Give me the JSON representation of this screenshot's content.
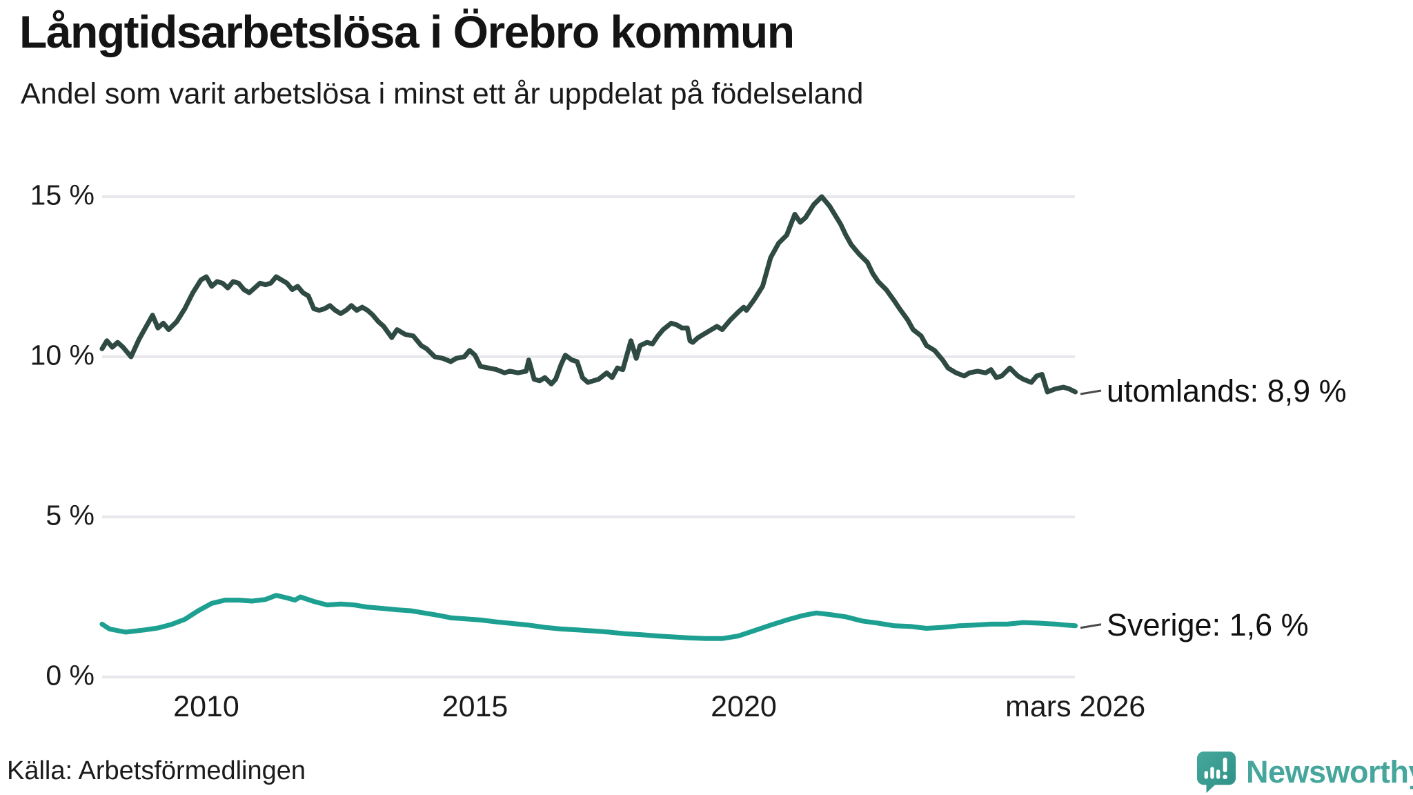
{
  "title": "Långtidsarbetslösa i Örebro kommun",
  "subtitle": "Andel som varit arbetslösa i minst ett år uppdelat på födelseland",
  "source": "Källa: Arbetsförmedlingen",
  "branding": {
    "name": "Newsworthy",
    "icon": "newsworthy-logo-icon",
    "color": "#3ba093"
  },
  "colors": {
    "foreign_line": "#2e4a43",
    "sweden_line": "#1da091",
    "gridline": "#e8e8ec",
    "connector": "#4a4a4a"
  },
  "chart_data": {
    "type": "line",
    "title": "Långtidsarbetslösa i Örebro kommun",
    "subtitle": "Andel som varit arbetslösa i minst ett år uppdelat på födelseland",
    "xlabel": "",
    "ylabel": "",
    "grid": true,
    "legend_position": "end-of-line-labels",
    "x_range": [
      2008.06,
      2026.17
    ],
    "ylim": [
      0,
      15.3
    ],
    "y_axis": {
      "ticks": [
        {
          "label": "15 %",
          "value": 15
        },
        {
          "label": "10 %",
          "value": 10
        },
        {
          "label": "5 %",
          "value": 5
        },
        {
          "label": "0 %",
          "value": 0
        }
      ]
    },
    "x_axis": {
      "ticks": [
        {
          "label": "2010",
          "year": 2010
        },
        {
          "label": "2015",
          "year": 2015
        },
        {
          "label": "2020",
          "year": 2020
        },
        {
          "label": "mars 2026",
          "year": 2026.17
        }
      ]
    },
    "series": [
      {
        "name": "utomlands",
        "label": "utomlands: 8,9 %",
        "last_value_text": "8,9 %",
        "color": "#2e4a43",
        "points": [
          [
            2008.06,
            10.25
          ],
          [
            2008.15,
            10.5
          ],
          [
            2008.25,
            10.3
          ],
          [
            2008.35,
            10.45
          ],
          [
            2008.45,
            10.3
          ],
          [
            2008.6,
            10.0
          ],
          [
            2008.75,
            10.55
          ],
          [
            2008.9,
            11.0
          ],
          [
            2009.0,
            11.3
          ],
          [
            2009.1,
            10.9
          ],
          [
            2009.2,
            11.05
          ],
          [
            2009.3,
            10.85
          ],
          [
            2009.45,
            11.1
          ],
          [
            2009.6,
            11.5
          ],
          [
            2009.75,
            12.0
          ],
          [
            2009.9,
            12.4
          ],
          [
            2010.0,
            12.5
          ],
          [
            2010.1,
            12.2
          ],
          [
            2010.2,
            12.35
          ],
          [
            2010.3,
            12.3
          ],
          [
            2010.4,
            12.15
          ],
          [
            2010.5,
            12.35
          ],
          [
            2010.6,
            12.3
          ],
          [
            2010.7,
            12.1
          ],
          [
            2010.8,
            12.0
          ],
          [
            2010.9,
            12.15
          ],
          [
            2011.0,
            12.3
          ],
          [
            2011.1,
            12.25
          ],
          [
            2011.2,
            12.3
          ],
          [
            2011.3,
            12.5
          ],
          [
            2011.4,
            12.4
          ],
          [
            2011.5,
            12.3
          ],
          [
            2011.6,
            12.1
          ],
          [
            2011.7,
            12.2
          ],
          [
            2011.8,
            12.0
          ],
          [
            2011.9,
            11.9
          ],
          [
            2012.0,
            11.5
          ],
          [
            2012.1,
            11.45
          ],
          [
            2012.2,
            11.5
          ],
          [
            2012.3,
            11.6
          ],
          [
            2012.4,
            11.45
          ],
          [
            2012.5,
            11.35
          ],
          [
            2012.6,
            11.45
          ],
          [
            2012.7,
            11.6
          ],
          [
            2012.8,
            11.45
          ],
          [
            2012.9,
            11.55
          ],
          [
            2013.0,
            11.45
          ],
          [
            2013.1,
            11.3
          ],
          [
            2013.2,
            11.1
          ],
          [
            2013.3,
            10.95
          ],
          [
            2013.45,
            10.6
          ],
          [
            2013.55,
            10.85
          ],
          [
            2013.7,
            10.7
          ],
          [
            2013.85,
            10.65
          ],
          [
            2014.0,
            10.35
          ],
          [
            2014.1,
            10.25
          ],
          [
            2014.25,
            10.0
          ],
          [
            2014.4,
            9.95
          ],
          [
            2014.55,
            9.85
          ],
          [
            2014.65,
            9.95
          ],
          [
            2014.8,
            10.0
          ],
          [
            2014.9,
            10.2
          ],
          [
            2015.0,
            10.05
          ],
          [
            2015.1,
            9.7
          ],
          [
            2015.25,
            9.65
          ],
          [
            2015.4,
            9.6
          ],
          [
            2015.55,
            9.5
          ],
          [
            2015.65,
            9.55
          ],
          [
            2015.8,
            9.5
          ],
          [
            2015.95,
            9.55
          ],
          [
            2016.0,
            9.9
          ],
          [
            2016.1,
            9.3
          ],
          [
            2016.2,
            9.25
          ],
          [
            2016.3,
            9.35
          ],
          [
            2016.42,
            9.15
          ],
          [
            2016.5,
            9.3
          ],
          [
            2016.6,
            9.75
          ],
          [
            2016.68,
            10.05
          ],
          [
            2016.8,
            9.9
          ],
          [
            2016.9,
            9.85
          ],
          [
            2017.0,
            9.35
          ],
          [
            2017.1,
            9.2
          ],
          [
            2017.2,
            9.25
          ],
          [
            2017.3,
            9.3
          ],
          [
            2017.45,
            9.5
          ],
          [
            2017.55,
            9.35
          ],
          [
            2017.65,
            9.65
          ],
          [
            2017.75,
            9.6
          ],
          [
            2017.9,
            10.5
          ],
          [
            2018.0,
            9.95
          ],
          [
            2018.07,
            10.35
          ],
          [
            2018.2,
            10.45
          ],
          [
            2018.3,
            10.4
          ],
          [
            2018.4,
            10.65
          ],
          [
            2018.5,
            10.85
          ],
          [
            2018.65,
            11.05
          ],
          [
            2018.75,
            11.0
          ],
          [
            2018.85,
            10.9
          ],
          [
            2018.95,
            10.9
          ],
          [
            2019.0,
            10.5
          ],
          [
            2019.05,
            10.45
          ],
          [
            2019.15,
            10.6
          ],
          [
            2019.25,
            10.7
          ],
          [
            2019.35,
            10.8
          ],
          [
            2019.5,
            10.95
          ],
          [
            2019.6,
            10.85
          ],
          [
            2019.75,
            11.15
          ],
          [
            2019.9,
            11.4
          ],
          [
            2020.0,
            11.55
          ],
          [
            2020.05,
            11.45
          ],
          [
            2020.2,
            11.8
          ],
          [
            2020.35,
            12.2
          ],
          [
            2020.5,
            13.1
          ],
          [
            2020.65,
            13.55
          ],
          [
            2020.8,
            13.8
          ],
          [
            2020.95,
            14.45
          ],
          [
            2021.05,
            14.2
          ],
          [
            2021.15,
            14.35
          ],
          [
            2021.3,
            14.75
          ],
          [
            2021.45,
            15.0
          ],
          [
            2021.6,
            14.7
          ],
          [
            2021.8,
            14.15
          ],
          [
            2021.9,
            13.8
          ],
          [
            2022.0,
            13.5
          ],
          [
            2022.15,
            13.2
          ],
          [
            2022.3,
            12.95
          ],
          [
            2022.4,
            12.6
          ],
          [
            2022.5,
            12.35
          ],
          [
            2022.65,
            12.1
          ],
          [
            2022.8,
            11.75
          ],
          [
            2022.9,
            11.5
          ],
          [
            2023.05,
            11.15
          ],
          [
            2023.15,
            10.85
          ],
          [
            2023.3,
            10.65
          ],
          [
            2023.4,
            10.35
          ],
          [
            2023.55,
            10.2
          ],
          [
            2023.7,
            9.9
          ],
          [
            2023.8,
            9.65
          ],
          [
            2023.95,
            9.5
          ],
          [
            2024.1,
            9.4
          ],
          [
            2024.2,
            9.5
          ],
          [
            2024.35,
            9.55
          ],
          [
            2024.5,
            9.5
          ],
          [
            2024.6,
            9.6
          ],
          [
            2024.7,
            9.35
          ],
          [
            2024.8,
            9.4
          ],
          [
            2024.95,
            9.65
          ],
          [
            2025.1,
            9.4
          ],
          [
            2025.2,
            9.3
          ],
          [
            2025.35,
            9.2
          ],
          [
            2025.45,
            9.4
          ],
          [
            2025.55,
            9.45
          ],
          [
            2025.65,
            8.9
          ],
          [
            2025.8,
            9.0
          ],
          [
            2025.95,
            9.05
          ],
          [
            2026.05,
            9.0
          ],
          [
            2026.17,
            8.9
          ]
        ]
      },
      {
        "name": "Sverige",
        "label": "Sverige: 1,6 %",
        "last_value_text": "1,6 %",
        "color": "#1da091",
        "points": [
          [
            2008.06,
            1.65
          ],
          [
            2008.2,
            1.5
          ],
          [
            2008.5,
            1.4
          ],
          [
            2008.85,
            1.47
          ],
          [
            2009.1,
            1.53
          ],
          [
            2009.35,
            1.64
          ],
          [
            2009.6,
            1.8
          ],
          [
            2009.85,
            2.07
          ],
          [
            2010.1,
            2.3
          ],
          [
            2010.35,
            2.4
          ],
          [
            2010.6,
            2.4
          ],
          [
            2010.85,
            2.37
          ],
          [
            2011.1,
            2.42
          ],
          [
            2011.3,
            2.55
          ],
          [
            2011.5,
            2.47
          ],
          [
            2011.65,
            2.4
          ],
          [
            2011.75,
            2.5
          ],
          [
            2012.0,
            2.36
          ],
          [
            2012.25,
            2.25
          ],
          [
            2012.5,
            2.28
          ],
          [
            2012.75,
            2.25
          ],
          [
            2013.0,
            2.18
          ],
          [
            2013.3,
            2.14
          ],
          [
            2013.55,
            2.1
          ],
          [
            2013.8,
            2.07
          ],
          [
            2014.05,
            2.0
          ],
          [
            2014.3,
            1.93
          ],
          [
            2014.55,
            1.85
          ],
          [
            2014.8,
            1.82
          ],
          [
            2015.1,
            1.78
          ],
          [
            2015.4,
            1.72
          ],
          [
            2015.7,
            1.67
          ],
          [
            2016.0,
            1.62
          ],
          [
            2016.3,
            1.55
          ],
          [
            2016.6,
            1.5
          ],
          [
            2016.9,
            1.47
          ],
          [
            2017.2,
            1.44
          ],
          [
            2017.5,
            1.4
          ],
          [
            2017.8,
            1.35
          ],
          [
            2018.1,
            1.32
          ],
          [
            2018.4,
            1.28
          ],
          [
            2018.7,
            1.25
          ],
          [
            2019.0,
            1.22
          ],
          [
            2019.3,
            1.2
          ],
          [
            2019.6,
            1.2
          ],
          [
            2019.9,
            1.28
          ],
          [
            2020.2,
            1.45
          ],
          [
            2020.5,
            1.62
          ],
          [
            2020.8,
            1.78
          ],
          [
            2021.1,
            1.92
          ],
          [
            2021.35,
            2.0
          ],
          [
            2021.6,
            1.95
          ],
          [
            2021.9,
            1.88
          ],
          [
            2022.2,
            1.75
          ],
          [
            2022.5,
            1.68
          ],
          [
            2022.8,
            1.6
          ],
          [
            2023.1,
            1.58
          ],
          [
            2023.4,
            1.52
          ],
          [
            2023.7,
            1.55
          ],
          [
            2024.0,
            1.6
          ],
          [
            2024.3,
            1.62
          ],
          [
            2024.6,
            1.65
          ],
          [
            2024.9,
            1.65
          ],
          [
            2025.2,
            1.7
          ],
          [
            2025.5,
            1.68
          ],
          [
            2025.8,
            1.65
          ],
          [
            2026.0,
            1.62
          ],
          [
            2026.17,
            1.6
          ]
        ]
      }
    ]
  }
}
